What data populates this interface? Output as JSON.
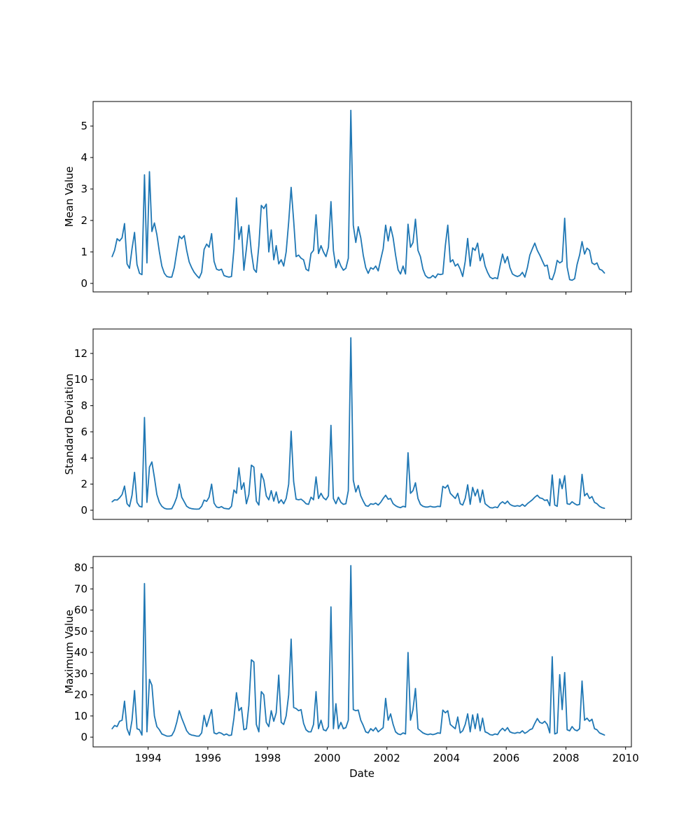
{
  "figure": {
    "background": "#ffffff",
    "line_color": "#1f77b4"
  },
  "x_axis": {
    "label": "Date",
    "tick_labels": [
      "1994",
      "1996",
      "1998",
      "2000",
      "2002",
      "2004",
      "2006",
      "2008",
      "2010"
    ],
    "tick_values": [
      1994,
      1996,
      1998,
      2000,
      2002,
      2004,
      2006,
      2008,
      2010
    ],
    "xlim": [
      1992.154,
      2010.195
    ]
  },
  "chart_data": [
    {
      "type": "line",
      "ylabel": "Mean Value",
      "color": "#1f77b4",
      "yticks": [
        0,
        1,
        2,
        3,
        4,
        5
      ],
      "ylim": [
        -0.27,
        5.78
      ],
      "series": {
        "x_unit": "decimal_year",
        "x_start": 1992.7917,
        "x_step": 0.0833333,
        "values": [
          0.85,
          1.05,
          1.42,
          1.35,
          1.45,
          1.9,
          0.62,
          0.48,
          1.1,
          1.62,
          0.6,
          0.32,
          0.28,
          3.45,
          0.65,
          3.55,
          1.65,
          1.92,
          1.55,
          1.0,
          0.55,
          0.32,
          0.22,
          0.2,
          0.2,
          0.5,
          1.0,
          1.5,
          1.42,
          1.52,
          1.05,
          0.68,
          0.5,
          0.35,
          0.25,
          0.17,
          0.35,
          1.08,
          1.25,
          1.15,
          1.58,
          0.7,
          0.45,
          0.42,
          0.45,
          0.25,
          0.22,
          0.2,
          0.22,
          1.1,
          2.72,
          1.4,
          1.8,
          0.42,
          1.1,
          1.85,
          1.0,
          0.45,
          0.35,
          1.2,
          2.48,
          2.38,
          2.52,
          1.0,
          1.7,
          0.75,
          1.2,
          0.62,
          0.75,
          0.55,
          1.0,
          1.95,
          3.05,
          2.0,
          0.85,
          0.9,
          0.8,
          0.75,
          0.45,
          0.4,
          0.95,
          1.05,
          2.18,
          0.95,
          1.2,
          1.0,
          0.85,
          1.15,
          2.6,
          1.05,
          0.5,
          0.75,
          0.55,
          0.42,
          0.48,
          0.8,
          5.5,
          1.85,
          1.3,
          1.8,
          1.45,
          0.9,
          0.5,
          0.32,
          0.5,
          0.45,
          0.55,
          0.4,
          0.75,
          1.1,
          1.85,
          1.35,
          1.8,
          1.45,
          0.9,
          0.43,
          0.3,
          0.55,
          0.3,
          1.88,
          1.15,
          1.3,
          2.04,
          1.05,
          0.85,
          0.45,
          0.25,
          0.18,
          0.18,
          0.25,
          0.18,
          0.3,
          0.28,
          0.3,
          1.2,
          1.85,
          0.68,
          0.75,
          0.55,
          0.62,
          0.45,
          0.22,
          0.7,
          1.43,
          0.55,
          1.13,
          1.05,
          1.28,
          0.72,
          0.95,
          0.55,
          0.35,
          0.2,
          0.15,
          0.18,
          0.15,
          0.55,
          0.93,
          0.65,
          0.85,
          0.5,
          0.3,
          0.25,
          0.22,
          0.25,
          0.35,
          0.2,
          0.5,
          0.9,
          1.1,
          1.28,
          1.05,
          0.9,
          0.72,
          0.55,
          0.58,
          0.15,
          0.12,
          0.35,
          0.73,
          0.65,
          0.7,
          2.07,
          0.52,
          0.12,
          0.1,
          0.15,
          0.6,
          0.9,
          1.33,
          0.93,
          1.12,
          1.05,
          0.65,
          0.6,
          0.65,
          0.45,
          0.42,
          0.33
        ]
      }
    },
    {
      "type": "line",
      "ylabel": "Standard Deviation",
      "color": "#1f77b4",
      "yticks": [
        0,
        2,
        4,
        6,
        8,
        10,
        12
      ],
      "ylim": [
        -0.7,
        13.87
      ],
      "series": {
        "x_unit": "decimal_year",
        "x_start": 1992.7917,
        "x_step": 0.0833333,
        "values": [
          0.65,
          0.8,
          0.78,
          0.95,
          1.2,
          1.85,
          0.5,
          0.28,
          1.15,
          2.9,
          0.6,
          0.3,
          0.25,
          7.1,
          0.6,
          3.3,
          3.7,
          2.5,
          1.2,
          0.6,
          0.3,
          0.15,
          0.1,
          0.1,
          0.12,
          0.5,
          1.0,
          2.0,
          1.0,
          0.65,
          0.3,
          0.18,
          0.12,
          0.1,
          0.08,
          0.1,
          0.3,
          0.78,
          0.68,
          1.0,
          2.0,
          0.55,
          0.25,
          0.2,
          0.28,
          0.15,
          0.12,
          0.1,
          0.3,
          1.55,
          1.3,
          3.25,
          1.6,
          2.1,
          0.5,
          1.2,
          3.45,
          3.3,
          0.7,
          0.4,
          2.8,
          2.3,
          1.1,
          0.8,
          1.5,
          0.7,
          1.4,
          0.55,
          0.8,
          0.5,
          0.9,
          2.0,
          6.05,
          2.2,
          0.85,
          0.8,
          0.85,
          0.7,
          0.5,
          0.45,
          1.0,
          0.8,
          2.55,
          0.9,
          1.3,
          0.95,
          0.8,
          1.1,
          6.5,
          0.9,
          0.5,
          1.0,
          0.6,
          0.45,
          0.5,
          1.5,
          13.2,
          2.3,
          1.4,
          1.9,
          1.1,
          0.7,
          0.35,
          0.3,
          0.5,
          0.45,
          0.55,
          0.4,
          0.6,
          0.9,
          1.15,
          0.85,
          0.9,
          0.5,
          0.35,
          0.25,
          0.2,
          0.3,
          0.25,
          4.4,
          1.3,
          1.5,
          2.1,
          0.9,
          0.45,
          0.3,
          0.25,
          0.25,
          0.3,
          0.25,
          0.25,
          0.3,
          0.28,
          1.83,
          1.7,
          1.93,
          1.3,
          1.1,
          0.9,
          1.3,
          0.5,
          0.4,
          0.9,
          1.95,
          0.45,
          1.75,
          1.1,
          1.6,
          0.6,
          1.55,
          0.5,
          0.35,
          0.2,
          0.18,
          0.25,
          0.2,
          0.5,
          0.65,
          0.5,
          0.7,
          0.45,
          0.35,
          0.3,
          0.35,
          0.3,
          0.45,
          0.3,
          0.5,
          0.65,
          0.8,
          1.0,
          1.15,
          0.95,
          0.9,
          0.75,
          0.8,
          0.35,
          2.7,
          0.4,
          0.3,
          2.4,
          1.65,
          2.65,
          0.5,
          0.45,
          0.65,
          0.5,
          0.4,
          0.45,
          2.75,
          1.1,
          1.3,
          0.9,
          1.05,
          0.6,
          0.5,
          0.3,
          0.2,
          0.15
        ]
      }
    },
    {
      "type": "line",
      "ylabel": "Maximum Value",
      "color": "#1f77b4",
      "yticks": [
        0,
        10,
        20,
        30,
        40,
        50,
        60,
        70,
        80
      ],
      "ylim": [
        -4.6,
        85.3
      ],
      "series": {
        "x_unit": "decimal_year",
        "x_start": 1992.7917,
        "x_step": 0.0833333,
        "values": [
          4,
          5.5,
          5,
          7.5,
          8,
          17,
          4,
          1,
          8,
          22,
          4,
          3.5,
          1,
          72.5,
          2.5,
          27.3,
          24.5,
          10,
          5,
          3.5,
          1.5,
          1,
          0.5,
          0.5,
          0.8,
          3,
          7,
          12.5,
          9,
          6,
          3,
          1.5,
          1,
          0.8,
          0.5,
          0.5,
          2,
          10.3,
          5,
          9,
          13,
          2,
          1.5,
          2.2,
          1.8,
          1,
          1.5,
          0.8,
          1,
          9,
          21,
          12.5,
          14,
          3.5,
          4,
          15,
          36.5,
          35.5,
          6,
          2.5,
          21.5,
          20,
          7,
          5,
          12.5,
          7.5,
          11.5,
          29.3,
          7,
          6,
          10,
          20,
          46.3,
          14,
          13.5,
          12.5,
          13,
          6.5,
          3.5,
          2.5,
          2.5,
          6,
          21.5,
          4,
          8,
          3.5,
          3,
          5,
          61.5,
          4,
          15.8,
          4,
          7,
          4,
          4.5,
          8,
          81,
          13,
          12.5,
          12.8,
          8,
          5.5,
          2.5,
          2,
          4,
          3,
          4.5,
          2.5,
          3.5,
          4.5,
          18.3,
          8,
          11,
          6,
          2.5,
          1.5,
          1.2,
          2,
          1.5,
          40,
          8,
          13,
          23,
          4,
          3,
          2,
          1.5,
          1.2,
          1.5,
          1.2,
          1.5,
          2,
          1.8,
          12.8,
          11.5,
          12.5,
          6,
          5,
          4,
          9.5,
          2,
          3,
          6,
          11,
          2.5,
          10.5,
          4,
          11,
          3,
          9,
          2.5,
          2,
          1.2,
          1,
          1.5,
          1.2,
          3,
          4.2,
          3,
          4.5,
          2.5,
          2,
          1.8,
          2.2,
          2,
          3,
          1.8,
          2.5,
          3.5,
          4,
          6.5,
          8.8,
          7,
          6.5,
          7.5,
          6,
          2,
          38,
          1.5,
          2,
          29.5,
          13,
          30.5,
          3.5,
          3,
          5,
          3.5,
          3,
          4,
          26.5,
          8,
          9,
          7.5,
          8.5,
          4,
          3.5,
          2,
          1.5,
          1
        ]
      }
    }
  ]
}
